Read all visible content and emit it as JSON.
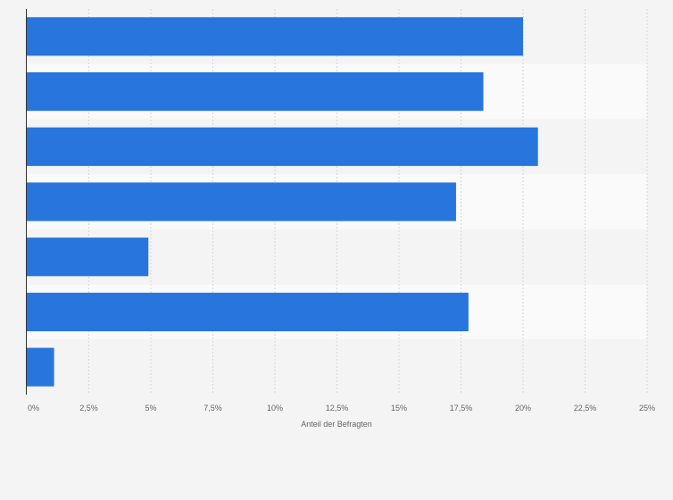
{
  "chart_data": {
    "type": "bar",
    "orientation": "horizontal",
    "categories": [
      "",
      "",
      "",
      "",
      "",
      "",
      ""
    ],
    "values": [
      20.0,
      18.4,
      20.6,
      17.3,
      4.9,
      17.8,
      1.1
    ],
    "xlabel": "Anteil der Befragten",
    "ylabel": "",
    "xlim": [
      0,
      25
    ],
    "x_ticks": [
      0,
      2.5,
      5,
      7.5,
      10,
      12.5,
      15,
      17.5,
      20,
      22.5,
      25
    ],
    "x_tick_labels": [
      "0%",
      "2,5%",
      "5%",
      "7,5%",
      "10%",
      "12,5%",
      "15%",
      "17,5%",
      "20%",
      "22,5%",
      "25%"
    ],
    "grid": true,
    "bar_color": "#2876dd",
    "legend": false
  }
}
